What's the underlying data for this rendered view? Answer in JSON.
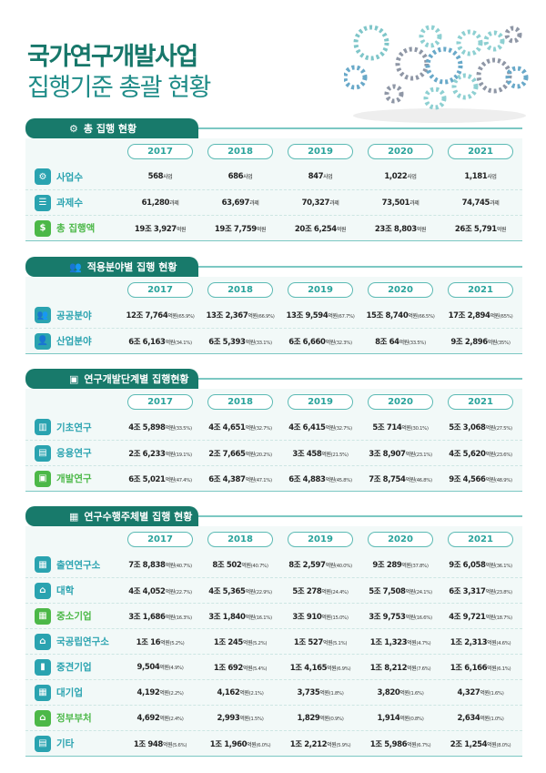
{
  "title": {
    "line1": "국가연구개발사업",
    "line2": "집행기준 총괄 현황"
  },
  "colors": {
    "primary": "#187a6b",
    "teal": "#2aa3b0",
    "green": "#4cb848",
    "panel": "#f2f9f8"
  },
  "years": [
    "2017",
    "2018",
    "2019",
    "2020",
    "2021"
  ],
  "sections": [
    {
      "title": "총 집행 현황",
      "icon": "gear-people-icon",
      "rows": [
        {
          "label": "사업수",
          "icon": "gear-people-icon",
          "color": "teal",
          "cells": [
            {
              "v": "568",
              "u": "사업"
            },
            {
              "v": "686",
              "u": "사업"
            },
            {
              "v": "847",
              "u": "사업"
            },
            {
              "v": "1,022",
              "u": "사업"
            },
            {
              "v": "1,181",
              "u": "사업"
            }
          ]
        },
        {
          "label": "과제수",
          "icon": "clipboard-icon",
          "color": "teal",
          "cells": [
            {
              "v": "61,280",
              "u": "과제"
            },
            {
              "v": "63,697",
              "u": "과제"
            },
            {
              "v": "70,327",
              "u": "과제"
            },
            {
              "v": "73,501",
              "u": "과제"
            },
            {
              "v": "74,745",
              "u": "과제"
            }
          ]
        },
        {
          "label": "총 집행액",
          "icon": "coins-icon",
          "color": "green",
          "cells": [
            {
              "v": "19조 3,927",
              "u": "억원"
            },
            {
              "v": "19조 7,759",
              "u": "억원"
            },
            {
              "v": "20조 6,254",
              "u": "억원"
            },
            {
              "v": "23조 8,803",
              "u": "억원"
            },
            {
              "v": "26조 5,791",
              "u": "억원"
            }
          ]
        }
      ]
    },
    {
      "title": "적용분야별 집행 현황",
      "icon": "people-group-icon",
      "rows": [
        {
          "label": "공공분야",
          "icon": "people-group-icon",
          "color": "teal",
          "cells": [
            {
              "v": "12조 7,764",
              "u": "억원",
              "p": "(65.9%)"
            },
            {
              "v": "13조 2,367",
              "u": "억원",
              "p": "(66.9%)"
            },
            {
              "v": "13조 9,594",
              "u": "억원",
              "p": "(67.7%)"
            },
            {
              "v": "15조 8,740",
              "u": "억원",
              "p": "(66.5%)"
            },
            {
              "v": "17조 2,894",
              "u": "억원",
              "p": "(65%)"
            }
          ]
        },
        {
          "label": "산업분야",
          "icon": "businessman-icon",
          "color": "teal",
          "cells": [
            {
              "v": "6조 6,163",
              "u": "억원",
              "p": "(34.1%)"
            },
            {
              "v": "6조 5,393",
              "u": "억원",
              "p": "(33.1%)"
            },
            {
              "v": "6조 6,660",
              "u": "억원",
              "p": "(32.3%)"
            },
            {
              "v": "8조 64",
              "u": "억원",
              "p": "(33.5%)"
            },
            {
              "v": "9조 2,896",
              "u": "억원",
              "p": "(35%)"
            }
          ]
        }
      ]
    },
    {
      "title": "연구개발단계별 집행현황",
      "icon": "device-icon",
      "rows": [
        {
          "label": "기초연구",
          "icon": "book-icon",
          "color": "teal",
          "cells": [
            {
              "v": "4조 5,898",
              "u": "억원",
              "p": "(33.5%)"
            },
            {
              "v": "4조 4,651",
              "u": "억원",
              "p": "(32.7%)"
            },
            {
              "v": "4조 6,415",
              "u": "억원",
              "p": "(32.7%)"
            },
            {
              "v": "5조 714",
              "u": "억원",
              "p": "(30.1%)"
            },
            {
              "v": "5조 3,068",
              "u": "억원",
              "p": "(27.5%)"
            }
          ]
        },
        {
          "label": "응용연구",
          "icon": "open-book-icon",
          "color": "teal",
          "cells": [
            {
              "v": "2조 6,233",
              "u": "억원",
              "p": "(19.1%)"
            },
            {
              "v": "2조 7,665",
              "u": "억원",
              "p": "(20.2%)"
            },
            {
              "v": "3조 458",
              "u": "억원",
              "p": "(21.5%)"
            },
            {
              "v": "3조 8,907",
              "u": "억원",
              "p": "(23.1%)"
            },
            {
              "v": "4조 5,620",
              "u": "억원",
              "p": "(23.6%)"
            }
          ]
        },
        {
          "label": "개발연구",
          "icon": "device-icon",
          "color": "green",
          "cells": [
            {
              "v": "6조 5,021",
              "u": "억원",
              "p": "(47.4%)"
            },
            {
              "v": "6조 4,387",
              "u": "억원",
              "p": "(47.1%)"
            },
            {
              "v": "6조 4,883",
              "u": "억원",
              "p": "(45.8%)"
            },
            {
              "v": "7조 8,754",
              "u": "억원",
              "p": "(46.8%)"
            },
            {
              "v": "9조 4,566",
              "u": "억원",
              "p": "(48.9%)"
            }
          ]
        }
      ]
    },
    {
      "title": "연구수행주체별 집행 현황",
      "icon": "buildings-icon",
      "rows": [
        {
          "label": "출연연구소",
          "icon": "buildings-icon",
          "color": "teal",
          "cells": [
            {
              "v": "7조 8,838",
              "u": "억원",
              "p": "(40.7%)"
            },
            {
              "v": "8조 502",
              "u": "억원",
              "p": "(40.7%)"
            },
            {
              "v": "8조 2,597",
              "u": "억원",
              "p": "(40.0%)"
            },
            {
              "v": "9조 289",
              "u": "억원",
              "p": "(37.8%)"
            },
            {
              "v": "9조 6,058",
              "u": "억원",
              "p": "(36.1%)"
            }
          ]
        },
        {
          "label": "대학",
          "icon": "university-icon",
          "color": "teal",
          "cells": [
            {
              "v": "4조 4,052",
              "u": "억원",
              "p": "(22.7%)"
            },
            {
              "v": "4조 5,365",
              "u": "억원",
              "p": "(22.9%)"
            },
            {
              "v": "5조 278",
              "u": "억원",
              "p": "(24.4%)"
            },
            {
              "v": "5조 7,508",
              "u": "억원",
              "p": "(24.1%)"
            },
            {
              "v": "6조 3,317",
              "u": "억원",
              "p": "(23.8%)"
            }
          ]
        },
        {
          "label": "중소기업",
          "icon": "office-icon",
          "color": "green",
          "cells": [
            {
              "v": "3조 1,686",
              "u": "억원",
              "p": "(16.3%)"
            },
            {
              "v": "3조 1,840",
              "u": "억원",
              "p": "(16.1%)"
            },
            {
              "v": "3조 910",
              "u": "억원",
              "p": "(15.0%)"
            },
            {
              "v": "3조 9,753",
              "u": "억원",
              "p": "(16.6%)"
            },
            {
              "v": "4조 9,721",
              "u": "억원",
              "p": "(18.7%)"
            }
          ]
        },
        {
          "label": "국공립연구소",
          "icon": "institute-icon",
          "color": "teal",
          "cells": [
            {
              "v": "1조 16",
              "u": "억원",
              "p": "(5.2%)"
            },
            {
              "v": "1조 245",
              "u": "억원",
              "p": "(5.2%)"
            },
            {
              "v": "1조 527",
              "u": "억원",
              "p": "(5.1%)"
            },
            {
              "v": "1조 1,323",
              "u": "억원",
              "p": "(4.7%)"
            },
            {
              "v": "1조 2,313",
              "u": "억원",
              "p": "(4.6%)"
            }
          ]
        },
        {
          "label": "중견기업",
          "icon": "factory-icon",
          "color": "teal",
          "cells": [
            {
              "v": "9,504",
              "u": "억원",
              "p": "(4.9%)"
            },
            {
              "v": "1조 692",
              "u": "억원",
              "p": "(5.4%)"
            },
            {
              "v": "1조 4,165",
              "u": "억원",
              "p": "(6.9%)"
            },
            {
              "v": "1조 8,212",
              "u": "억원",
              "p": "(7.6%)"
            },
            {
              "v": "1조 6,166",
              "u": "억원",
              "p": "(6.1%)"
            }
          ]
        },
        {
          "label": "대기업",
          "icon": "tower-icon",
          "color": "teal",
          "cells": [
            {
              "v": "4,192",
              "u": "억원",
              "p": "(2.2%)"
            },
            {
              "v": "4,162",
              "u": "억원",
              "p": "(2.1%)"
            },
            {
              "v": "3,735",
              "u": "억원",
              "p": "(1.8%)"
            },
            {
              "v": "3,820",
              "u": "억원",
              "p": "(1.6%)"
            },
            {
              "v": "4,327",
              "u": "억원",
              "p": "(1.6%)"
            }
          ]
        },
        {
          "label": "정부부처",
          "icon": "government-icon",
          "color": "green",
          "cells": [
            {
              "v": "4,692",
              "u": "억원",
              "p": "(2.4%)"
            },
            {
              "v": "2,993",
              "u": "억원",
              "p": "(1.5%)"
            },
            {
              "v": "1,829",
              "u": "억원",
              "p": "(0.9%)"
            },
            {
              "v": "1,914",
              "u": "억원",
              "p": "(0.8%)"
            },
            {
              "v": "2,634",
              "u": "억원",
              "p": "(1.0%)"
            }
          ]
        },
        {
          "label": "기타",
          "icon": "building-icon",
          "color": "teal",
          "cells": [
            {
              "v": "1조 948",
              "u": "억원",
              "p": "(5.6%)"
            },
            {
              "v": "1조 1,960",
              "u": "억원",
              "p": "(6.0%)"
            },
            {
              "v": "1조 2,212",
              "u": "억원",
              "p": "(5.9%)"
            },
            {
              "v": "1조 5,986",
              "u": "억원",
              "p": "(6.7%)"
            },
            {
              "v": "2조 1,254",
              "u": "억원",
              "p": "(8.0%)"
            }
          ]
        }
      ]
    }
  ]
}
